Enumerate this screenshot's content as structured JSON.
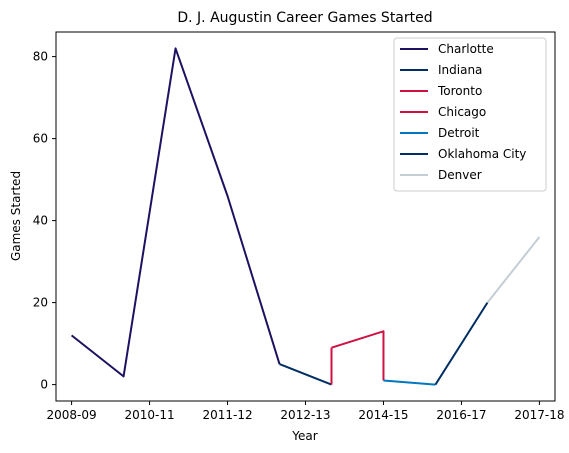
{
  "chart_data": {
    "type": "line",
    "title": "D. J. Augustin Career Games Started",
    "xlabel": "Year",
    "ylabel": "Games Started",
    "x_ticks": [
      "2008-09",
      "2010-11",
      "2011-12",
      "2012-13",
      "2014-15",
      "2016-17",
      "2017-18"
    ],
    "y_ticks": [
      0,
      20,
      40,
      60,
      80
    ],
    "xlim": [
      -0.3,
      9.3
    ],
    "ylim": [
      -4,
      86
    ],
    "grid": false,
    "legend_position": "top-right",
    "series": [
      {
        "name": "Charlotte",
        "color": "#1d1160",
        "points": [
          [
            0,
            12
          ],
          [
            1,
            2
          ],
          [
            2,
            82
          ],
          [
            3,
            46
          ],
          [
            4,
            5
          ]
        ]
      },
      {
        "name": "Indiana",
        "color": "#002d62",
        "points": [
          [
            4,
            5
          ],
          [
            5,
            0
          ]
        ]
      },
      {
        "name": "Toronto",
        "color": "#ce1141",
        "points": [
          [
            5,
            0
          ],
          [
            5,
            9
          ]
        ]
      },
      {
        "name": "Chicago",
        "color": "#ce1141",
        "points": [
          [
            5,
            9
          ],
          [
            6,
            13
          ],
          [
            6,
            1
          ]
        ]
      },
      {
        "name": "Detroit",
        "color": "#0077c0",
        "points": [
          [
            6,
            1
          ],
          [
            7,
            0
          ]
        ]
      },
      {
        "name": "Oklahoma City",
        "color": "#002d62",
        "points": [
          [
            7,
            0
          ],
          [
            8,
            20
          ]
        ]
      },
      {
        "name": "Denver",
        "color": "#c4ced4",
        "points": [
          [
            8,
            20
          ],
          [
            9,
            36
          ]
        ]
      }
    ]
  }
}
